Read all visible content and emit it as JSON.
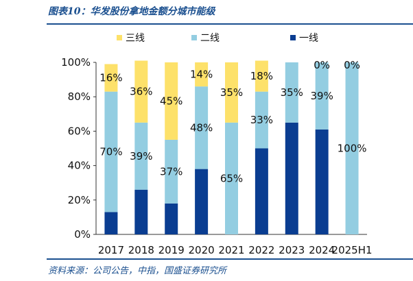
{
  "title": "图表10：华发股份拿地金额分城市能级",
  "source": "资料来源：公司公告，中指，国盛证券研究所",
  "colors": {
    "tier1": "#0a3d91",
    "tier2": "#93cde1",
    "tier3": "#fde16a",
    "rule": "#1a4f8f"
  },
  "chart_data": {
    "type": "bar",
    "stacked": true,
    "percent_stacked": true,
    "categories": [
      "2017",
      "2018",
      "2019",
      "2020",
      "2021",
      "2022",
      "2023",
      "2024",
      "2025H1"
    ],
    "series": [
      {
        "name": "一线",
        "color": "#0a3d91",
        "values": [
          13,
          26,
          18,
          38,
          0,
          50,
          65,
          61,
          0
        ],
        "labels": [
          "",
          "",
          "",
          "",
          "",
          "",
          "",
          "",
          ""
        ]
      },
      {
        "name": "二线",
        "color": "#93cde1",
        "values": [
          70,
          39,
          37,
          48,
          65,
          33,
          35,
          39,
          100
        ],
        "labels": [
          "70%",
          "39%",
          "37%",
          "48%",
          "65%",
          "33%",
          "35%",
          "39%",
          "100%"
        ]
      },
      {
        "name": "三线",
        "color": "#fde16a",
        "values": [
          16,
          36,
          45,
          14,
          35,
          18,
          0,
          0,
          0
        ],
        "labels": [
          "16%",
          "36%",
          "45%",
          "14%",
          "35%",
          "18%",
          "",
          "0%",
          "0%"
        ]
      }
    ],
    "legend_order": [
      "三线",
      "二线",
      "一线"
    ],
    "legend_position": "top",
    "ylim": [
      0,
      100
    ],
    "yticks": [
      "0%",
      "20%",
      "40%",
      "60%",
      "80%",
      "100%"
    ],
    "grid": false,
    "xlabel": "",
    "ylabel": ""
  }
}
